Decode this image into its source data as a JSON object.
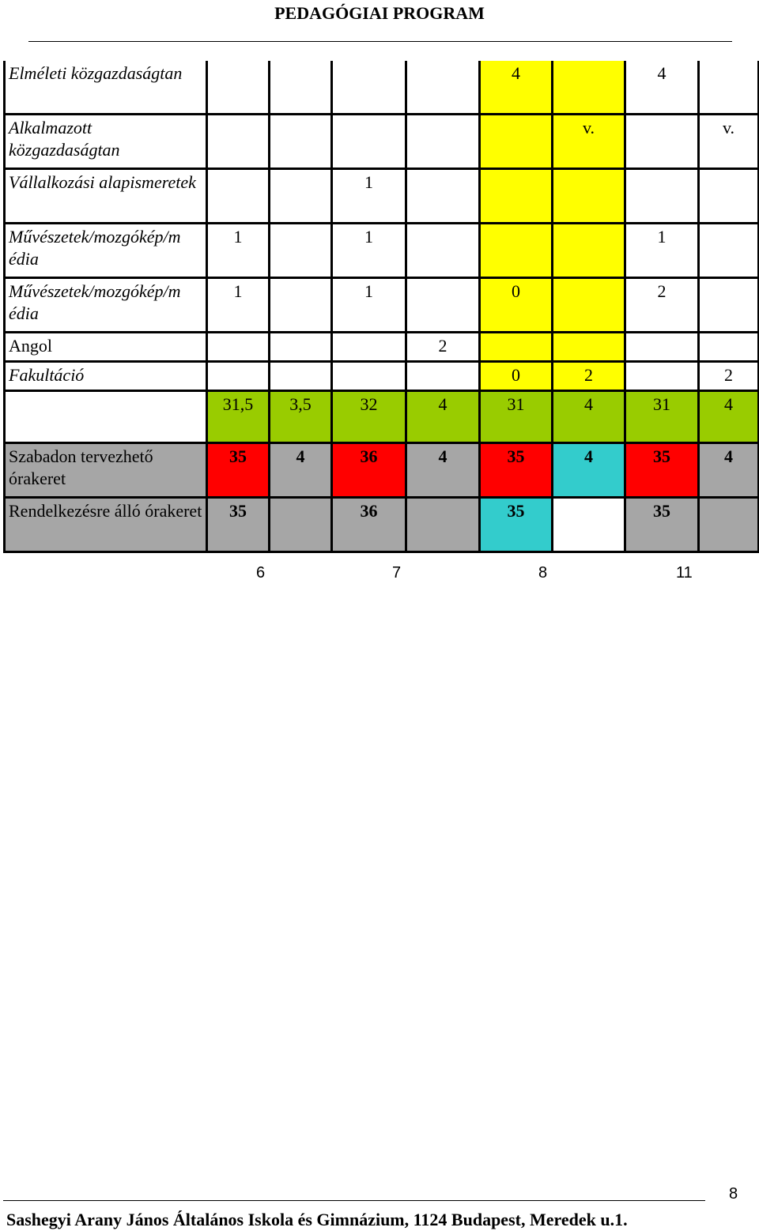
{
  "header": {
    "title": "PEDAGÓGIAI PROGRAM"
  },
  "colors": {
    "yellow": "#ffff00",
    "green": "#99cc00",
    "red": "#ff0000",
    "teal": "#33cccc",
    "gray": "#a6a6a6",
    "white": "#ffffff"
  },
  "table": {
    "rows": [
      {
        "label": "Elméleti közgazdaságtan",
        "italic": true,
        "cells": [
          "",
          "",
          "",
          "",
          "4",
          "",
          "4",
          ""
        ]
      },
      {
        "label": "Alkalmazott közgazdaságtan",
        "italic": true,
        "cells": [
          "",
          "",
          "",
          "",
          "",
          "v.",
          "",
          "v."
        ]
      },
      {
        "label": "Vállalkozási alapismeretek",
        "italic": true,
        "cells": [
          "",
          "",
          "1",
          "",
          "",
          "",
          "",
          ""
        ]
      },
      {
        "label": "Művészetek/mozgókép/m édia",
        "italic": true,
        "cells": [
          "1",
          "",
          "1",
          "",
          "",
          "",
          "1",
          ""
        ]
      },
      {
        "label": "Művészetek/mozgókép/m édia",
        "italic": true,
        "cells": [
          "1",
          "",
          "1",
          "",
          "0",
          "",
          "2",
          ""
        ]
      },
      {
        "label": "Angol",
        "italic": false,
        "cells": [
          "",
          "",
          "",
          "2",
          "",
          "",
          "",
          ""
        ]
      },
      {
        "label": "Fakultáció",
        "italic": true,
        "cells": [
          "",
          "",
          "",
          "",
          "0",
          "2",
          "",
          "2"
        ]
      },
      {
        "label": "",
        "italic": false,
        "cells": [
          "31,5",
          "3,5",
          "32",
          "4",
          "31",
          "4",
          "31",
          "4"
        ]
      },
      {
        "label": "Szabadon tervezhető órakeret",
        "italic": false,
        "cells": [
          "35",
          "4",
          "36",
          "4",
          "35",
          "4",
          "35",
          "4"
        ]
      },
      {
        "label": "Rendelkezésre álló órakeret",
        "italic": false,
        "cells": [
          "35",
          "",
          "36",
          "",
          "35",
          "",
          "35",
          ""
        ]
      }
    ]
  },
  "sub_labels": [
    "6",
    "7",
    "8",
    "11"
  ],
  "footer": {
    "page_number": "8",
    "text": "Sashegyi Arany János Általános Iskola és Gimnázium, 1124 Budapest, Meredek u.1."
  }
}
